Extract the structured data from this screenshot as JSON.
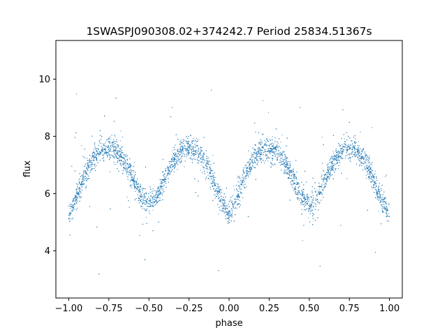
{
  "chart_data": {
    "type": "scatter",
    "title": "1SWASPJ090308.02+374242.7 Period 25834.51367s",
    "xlabel": "phase",
    "ylabel": "flux",
    "xlim": [
      -1.08,
      1.08
    ],
    "ylim": [
      2.35,
      11.35
    ],
    "xticks": [
      -1.0,
      -0.75,
      -0.5,
      -0.25,
      0.0,
      0.25,
      0.5,
      0.75,
      1.0
    ],
    "xtick_labels": [
      "−1.00",
      "−0.75",
      "−0.50",
      "−0.25",
      "0.00",
      "0.25",
      "0.50",
      "0.75",
      "1.00"
    ],
    "yticks": [
      4,
      6,
      8,
      10
    ],
    "ytick_labels": [
      "4",
      "6",
      "8",
      "10"
    ],
    "grid": false,
    "point_color": "#1f77b4",
    "series": [
      {
        "x": [
          -1.0,
          -0.95,
          -0.9,
          -0.85,
          -0.8,
          -0.75,
          -0.7,
          -0.65,
          -0.6,
          -0.55,
          -0.5,
          -0.45,
          -0.4,
          -0.35,
          -0.3,
          -0.25,
          -0.2,
          -0.15,
          -0.1,
          -0.05,
          0.0,
          0.05,
          0.1,
          0.15,
          0.2,
          0.25,
          0.3,
          0.35,
          0.4,
          0.45,
          0.5,
          0.55,
          0.6,
          0.65,
          0.7,
          0.75,
          0.8,
          0.85,
          0.9,
          0.95,
          1.0
        ],
        "y": [
          5.2,
          5.9,
          6.6,
          7.2,
          7.5,
          7.6,
          7.5,
          7.1,
          6.5,
          5.9,
          5.6,
          5.9,
          6.5,
          7.1,
          7.5,
          7.6,
          7.5,
          7.1,
          6.5,
          5.8,
          5.2,
          5.9,
          6.6,
          7.2,
          7.5,
          7.6,
          7.5,
          7.1,
          6.5,
          5.9,
          5.6,
          5.9,
          6.5,
          7.1,
          7.5,
          7.6,
          7.5,
          7.1,
          6.5,
          5.8,
          5.2
        ]
      }
    ]
  }
}
